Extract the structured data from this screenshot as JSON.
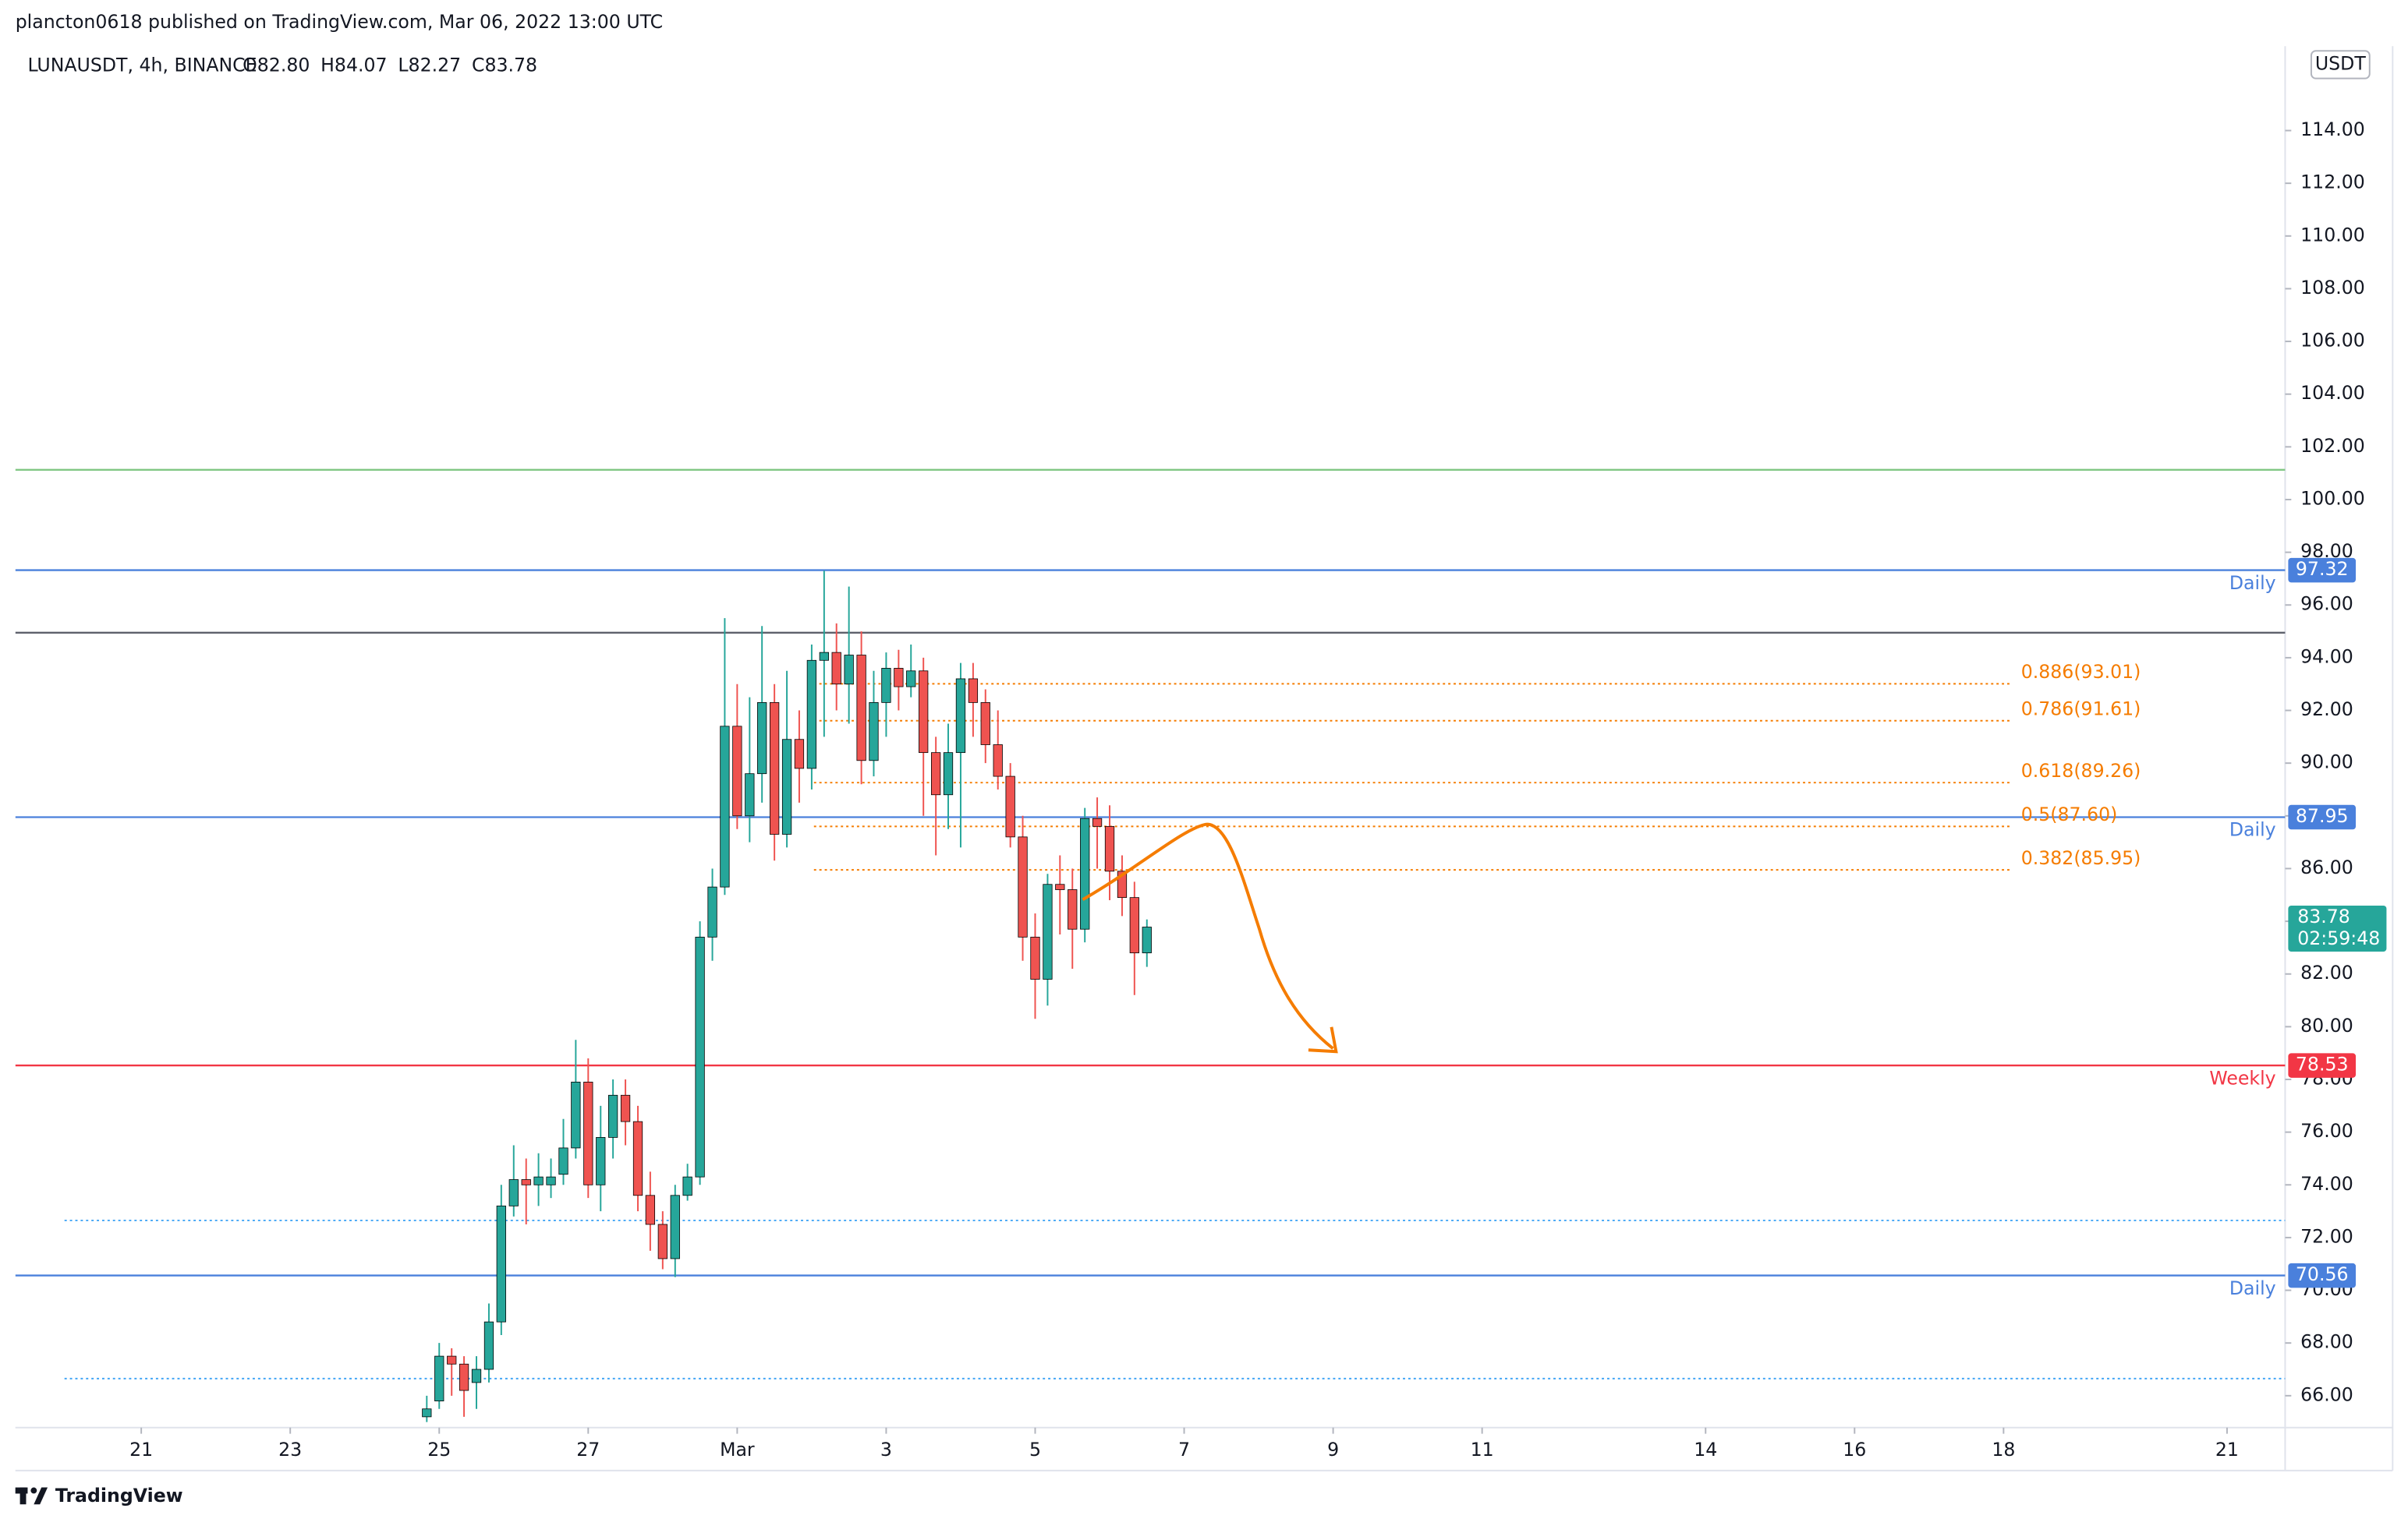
{
  "chart_data": {
    "type": "candlestick",
    "header": "plancton0618 published on TradingView.com, Mar 06, 2022 13:00 UTC",
    "symbol": "LUNAUSDT, 4h, BINANCE",
    "ohlc_labels": [
      "O82.80",
      "H84.07",
      "L82.27",
      "C83.78"
    ],
    "currency": "USDT",
    "countdown": "02:59:48",
    "brand": "TradingView",
    "x": [
      3.833,
      4,
      4.167,
      4.333,
      4.5,
      4.667,
      4.833,
      5,
      5.167,
      5.333,
      5.5,
      5.667,
      5.833,
      6,
      6.167,
      6.333,
      6.5,
      6.667,
      6.833,
      7,
      7.167,
      7.333,
      7.5,
      7.667,
      7.833,
      8,
      8.167,
      8.333,
      8.5,
      8.667,
      8.833,
      9,
      9.167,
      9.333,
      9.5,
      9.667,
      9.833,
      10,
      10.167,
      10.333,
      10.5,
      10.667,
      10.833,
      11,
      11.167,
      11.333,
      11.5,
      11.667,
      11.833,
      12,
      12.167,
      12.333,
      12.5,
      12.667,
      12.833,
      13,
      13.167,
      13.333,
      13.5
    ],
    "open": [
      65.2,
      65.8,
      67.5,
      67.2,
      66.5,
      67.0,
      68.8,
      73.2,
      74.2,
      74.0,
      74.0,
      74.4,
      75.4,
      77.9,
      74.0,
      75.8,
      77.4,
      76.4,
      73.6,
      72.5,
      71.2,
      73.6,
      74.3,
      83.4,
      85.3,
      91.4,
      88.0,
      89.6,
      92.3,
      87.3,
      90.9,
      89.8,
      93.9,
      94.2,
      93.0,
      94.1,
      90.1,
      92.3,
      93.6,
      92.9,
      93.5,
      90.4,
      88.8,
      90.4,
      93.2,
      92.3,
      90.7,
      89.5,
      87.2,
      83.4,
      81.8,
      85.4,
      85.2,
      83.7,
      87.9,
      87.6,
      85.9,
      84.9,
      82.8
    ],
    "high": [
      66.0,
      68.0,
      67.8,
      67.5,
      67.5,
      69.5,
      74.0,
      75.5,
      75.0,
      75.2,
      75.0,
      76.5,
      79.5,
      78.8,
      77.0,
      78.0,
      78.0,
      77.0,
      74.5,
      73.0,
      74.0,
      74.8,
      84.0,
      86.0,
      95.5,
      93.0,
      92.5,
      95.2,
      93.0,
      93.5,
      92.0,
      94.5,
      97.3,
      95.3,
      96.7,
      95.0,
      93.5,
      94.2,
      94.3,
      94.5,
      94.0,
      91.0,
      91.5,
      93.8,
      93.8,
      92.8,
      92.0,
      90.0,
      88.0,
      84.3,
      85.8,
      86.5,
      86.0,
      88.3,
      88.7,
      88.4,
      86.5,
      85.5,
      84.07
    ],
    "low": [
      65.0,
      65.5,
      66.0,
      65.2,
      65.5,
      66.5,
      68.3,
      72.8,
      72.5,
      73.2,
      73.5,
      74.0,
      75.0,
      73.5,
      73.0,
      75.0,
      75.5,
      73.0,
      71.5,
      70.8,
      70.5,
      73.4,
      74.0,
      82.5,
      85.0,
      87.5,
      87.0,
      88.5,
      86.3,
      86.8,
      88.5,
      89.0,
      91.0,
      92.0,
      91.5,
      89.2,
      89.5,
      91.0,
      92.0,
      92.5,
      88.0,
      86.5,
      87.5,
      86.8,
      91.0,
      90.0,
      89.0,
      86.8,
      82.5,
      80.3,
      80.8,
      83.5,
      82.2,
      83.2,
      86.0,
      84.8,
      84.2,
      81.2,
      82.27
    ],
    "close": [
      65.5,
      67.5,
      67.2,
      66.2,
      67.0,
      68.8,
      73.2,
      74.2,
      74.0,
      74.3,
      74.3,
      75.4,
      77.9,
      74.0,
      75.8,
      77.4,
      76.4,
      73.6,
      72.5,
      71.2,
      73.6,
      74.3,
      83.4,
      85.3,
      91.4,
      88.0,
      89.6,
      92.3,
      87.3,
      90.9,
      89.8,
      93.9,
      94.2,
      93.0,
      94.1,
      90.1,
      92.3,
      93.6,
      92.9,
      93.5,
      90.4,
      88.8,
      90.4,
      93.2,
      92.3,
      90.7,
      89.5,
      87.2,
      83.4,
      81.8,
      85.4,
      85.2,
      83.7,
      87.9,
      87.6,
      85.9,
      84.9,
      82.8,
      83.78
    ],
    "up_color": "#26a69a",
    "down_color": "#ef5350",
    "xlim": [
      -1.69,
      28.78
    ],
    "xticks": [
      {
        "value": 0,
        "label": "21"
      },
      {
        "value": 2,
        "label": "23"
      },
      {
        "value": 4,
        "label": "25"
      },
      {
        "value": 6,
        "label": "27"
      },
      {
        "value": 8,
        "label": "Mar"
      },
      {
        "value": 10,
        "label": "3"
      },
      {
        "value": 12,
        "label": "5"
      },
      {
        "value": 14,
        "label": "7"
      },
      {
        "value": 16,
        "label": "9"
      },
      {
        "value": 18,
        "label": "11"
      },
      {
        "value": 21,
        "label": "14"
      },
      {
        "value": 23,
        "label": "16"
      },
      {
        "value": 25,
        "label": "18"
      },
      {
        "value": 28,
        "label": "21"
      }
    ],
    "ylim": [
      64.79,
      117.2
    ],
    "yticks": [
      {
        "value": 66,
        "label": "66.00"
      },
      {
        "value": 68,
        "label": "68.00"
      },
      {
        "value": 70,
        "label": "70.00"
      },
      {
        "value": 72,
        "label": "72.00"
      },
      {
        "value": 74,
        "label": "74.00"
      },
      {
        "value": 76,
        "label": "76.00"
      },
      {
        "value": 78,
        "label": "78.00"
      },
      {
        "value": 80,
        "label": "80.00"
      },
      {
        "value": 82,
        "label": "82.00"
      },
      {
        "value": 84,
        "label": "84.00"
      },
      {
        "value": 86,
        "label": "86.00"
      },
      {
        "value": 88,
        "label": "88.00"
      },
      {
        "value": 90,
        "label": "90.00"
      },
      {
        "value": 92,
        "label": "92.00"
      },
      {
        "value": 94,
        "label": "94.00"
      },
      {
        "value": 96,
        "label": "96.00"
      },
      {
        "value": 98,
        "label": "98.00"
      },
      {
        "value": 100,
        "label": "100.00"
      },
      {
        "value": 102,
        "label": "102.00"
      },
      {
        "value": 104,
        "label": "104.00"
      },
      {
        "value": 106,
        "label": "106.00"
      },
      {
        "value": 108,
        "label": "108.00"
      },
      {
        "value": 110,
        "label": "110.00"
      },
      {
        "value": 112,
        "label": "112.00"
      },
      {
        "value": 114,
        "label": "114.00"
      }
    ],
    "levels": [
      {
        "value": 101.13,
        "color": "#81c784"
      },
      {
        "value": 97.32,
        "color": "#4a80dc",
        "tag": "Daily"
      },
      {
        "value": 94.95,
        "color": "#5d606b"
      },
      {
        "value": 87.95,
        "color": "#4a80dc",
        "tag": "Daily"
      },
      {
        "value": 78.53,
        "color": "#f23645",
        "tag": "Weekly"
      },
      {
        "value": 70.56,
        "color": "#4a80dc",
        "tag": "Daily"
      }
    ],
    "dotted_levels": [
      {
        "value": 72.65,
        "color": "#42a5f5"
      },
      {
        "value": 66.65,
        "color": "#42a5f5"
      }
    ],
    "fib_color": "#f57c00",
    "fib_levels": [
      {
        "value": 93.01,
        "label": "0.886(93.01)"
      },
      {
        "value": 91.61,
        "label": "0.786(91.61)"
      },
      {
        "value": 89.26,
        "label": "0.618(89.26)"
      },
      {
        "value": 87.6,
        "label": "0.5(87.60)"
      },
      {
        "value": 85.95,
        "label": "0.382(85.95)"
      }
    ]
  }
}
